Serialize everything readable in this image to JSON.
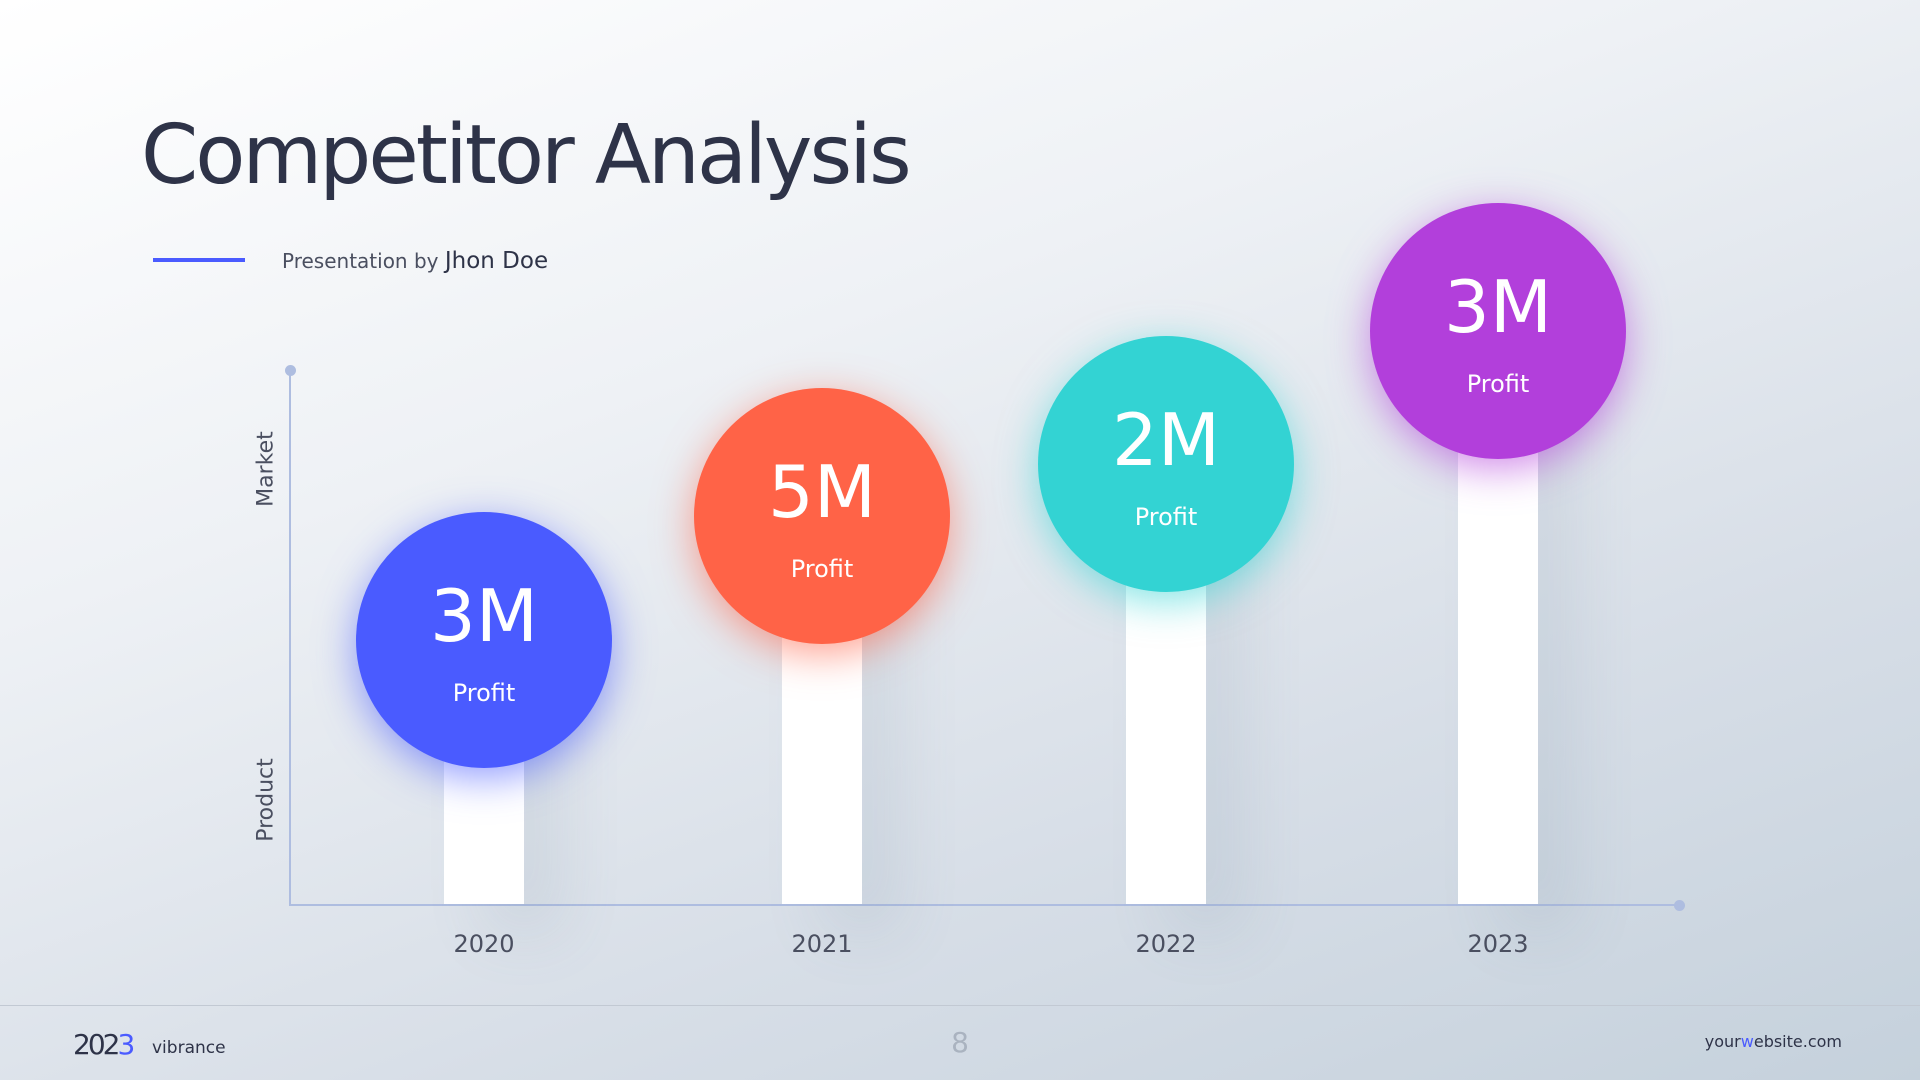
{
  "slide": {
    "title": "Competitor Analysis",
    "subtitle_prefix": "Presentation by ",
    "subtitle_name": "Jhon Doe",
    "accent_color": "#4a5bff"
  },
  "chart_data": {
    "type": "bar",
    "categories": [
      "2020",
      "2021",
      "2022",
      "2023"
    ],
    "values": [
      3,
      5,
      2,
      3
    ],
    "value_labels": [
      "3M",
      "5M",
      "2M",
      "3M"
    ],
    "point_label": "Profit",
    "colors": [
      "#4a5bff",
      "#ff6347",
      "#33d3d3",
      "#b23fdb"
    ],
    "ylabel_top": "Market",
    "ylabel_bottom": "Product"
  },
  "footer": {
    "brand_year_main": "202",
    "brand_year_accent": "3",
    "brand_name": "vibrance",
    "page_number": "8",
    "website_pre": "your",
    "website_accent": "w",
    "website_post": "ebsite.com"
  }
}
